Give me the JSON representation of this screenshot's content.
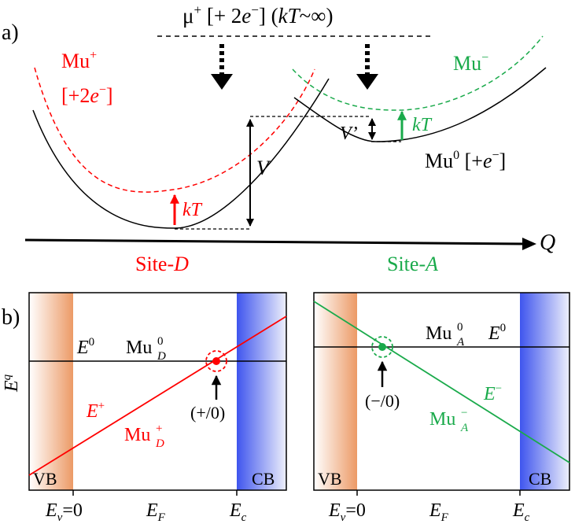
{
  "panel_a": {
    "label": "a)",
    "top_state": {
      "mu": "μ",
      "plus": "+",
      "bracket_open": " [+ 2",
      "e": "e",
      "minus": "−",
      "bracket_mid": "] (",
      "kT": "kT",
      "tail": "~∞)"
    },
    "mu_plus": {
      "name": "Mu",
      "sup": "+",
      "sub_bracket": "[+2",
      "e": "e",
      "minus": "−",
      "close": "]"
    },
    "mu_minus": {
      "name": "Mu",
      "sup": "−"
    },
    "mu_zero": {
      "name": "Mu",
      "sup": "0",
      "bracket": " [+",
      "e": "e",
      "minus": "−",
      "close": "]"
    },
    "V": "V",
    "V_prime": "V’",
    "kT_left": "kT",
    "kT_right": "kT",
    "axis_Q": "Q",
    "site_D_prefix": "Site-",
    "site_D_letter": "D",
    "site_A_prefix": "Site-",
    "site_A_letter": "A"
  },
  "panel_b": {
    "label": "b)",
    "y_axis": {
      "E": "E",
      "q": "q"
    },
    "left": {
      "E0": {
        "E": "E",
        "sup": "0"
      },
      "Mu0D": {
        "Mu": "Mu",
        "sup": "0",
        "sub": "D"
      },
      "Eplus": {
        "E": "E",
        "sup": "+"
      },
      "MuplusD": {
        "Mu": "Mu",
        "sup": "+",
        "sub": "D"
      },
      "transition": "(+/0)",
      "VB": "VB",
      "CB": "CB",
      "x_Ev": {
        "E": "E",
        "sub": "v",
        "eq": "=0"
      },
      "x_EF": {
        "E": "E",
        "sub": "F"
      },
      "x_Ec": {
        "E": "E",
        "sub": "c"
      }
    },
    "right": {
      "Mu0A": {
        "Mu": "Mu",
        "sup": "0",
        "sub": "A"
      },
      "E0": {
        "E": "E",
        "sup": "0"
      },
      "Eminus": {
        "E": "E",
        "sup": "−"
      },
      "MuminusA": {
        "Mu": "Mu",
        "sup": "−",
        "sub": "A"
      },
      "transition": "(−/0)",
      "VB": "VB",
      "CB": "CB",
      "x_Ev": {
        "E": "E",
        "sub": "v",
        "eq": "=0"
      },
      "x_EF": {
        "E": "E",
        "sub": "F"
      },
      "x_Ec": {
        "E": "E",
        "sub": "c"
      }
    }
  },
  "colors": {
    "red": "#ff0000",
    "green": "#1aaa4b",
    "black": "#000000",
    "vb_orange": "#f0a070",
    "cb_blue": "#4a5ef0"
  }
}
